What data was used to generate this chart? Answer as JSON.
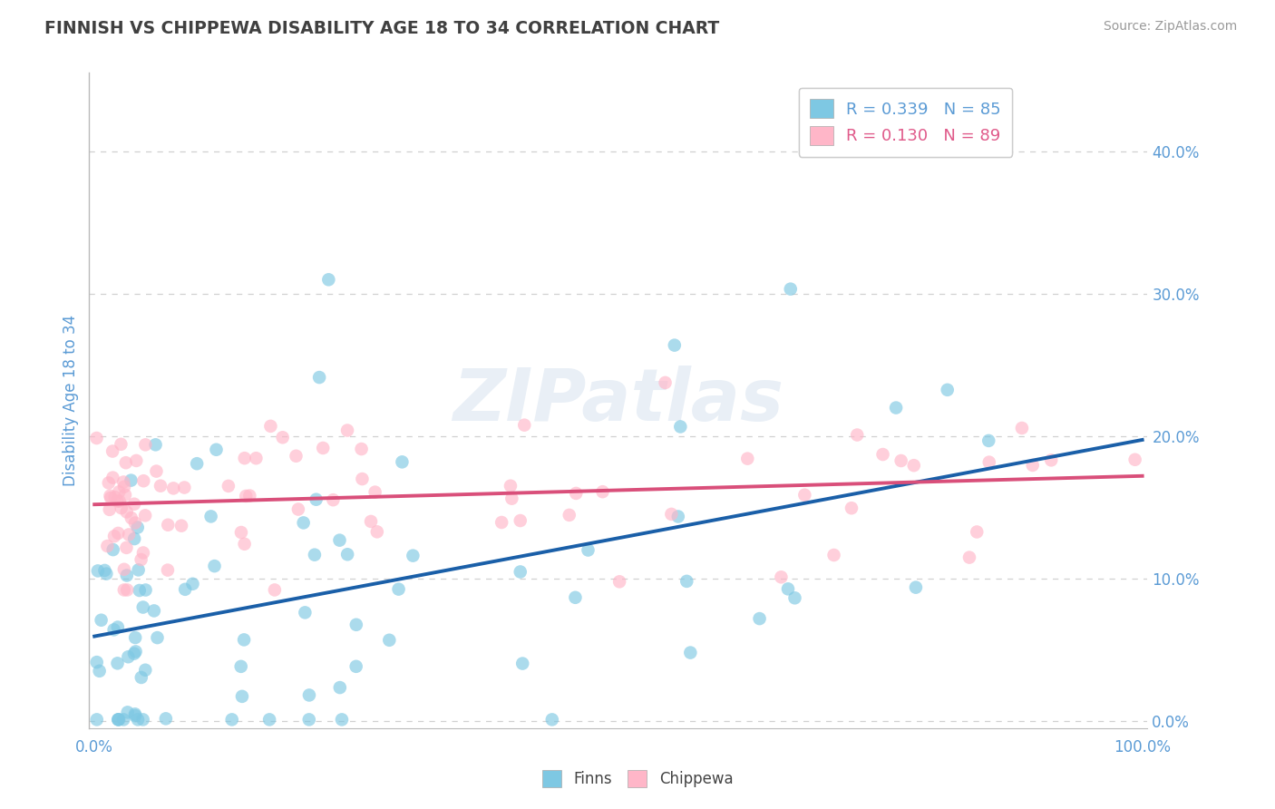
{
  "title": "FINNISH VS CHIPPEWA DISABILITY AGE 18 TO 34 CORRELATION CHART",
  "source": "Source: ZipAtlas.com",
  "ylabel": "Disability Age 18 to 34",
  "finns_R": 0.339,
  "finns_N": 85,
  "chippewa_R": 0.13,
  "chippewa_N": 89,
  "finns_color": "#7ec8e3",
  "chippewa_color": "#ffb6c8",
  "finns_line_color": "#1a5fa8",
  "chippewa_line_color": "#d94f7a",
  "background_color": "#ffffff",
  "grid_color": "#d0d0d0",
  "title_color": "#404040",
  "axis_label_color": "#5b9bd5",
  "legend_text_color_finns": "#5b9bd5",
  "legend_text_color_chippewa": "#e05a8a",
  "watermark": "ZIPatlas",
  "ytick_labels": [
    "0.0%",
    "10.0%",
    "20.0%",
    "30.0%",
    "40.0%"
  ],
  "ytick_vals": [
    0.0,
    0.1,
    0.2,
    0.3,
    0.4
  ],
  "xtick_labels": [
    "0.0%",
    "100.0%"
  ],
  "xtick_vals": [
    0.0,
    1.0
  ],
  "finns_line_start": 0.055,
  "finns_line_end": 0.2,
  "chippewa_line_start": 0.152,
  "chippewa_line_end": 0.172
}
